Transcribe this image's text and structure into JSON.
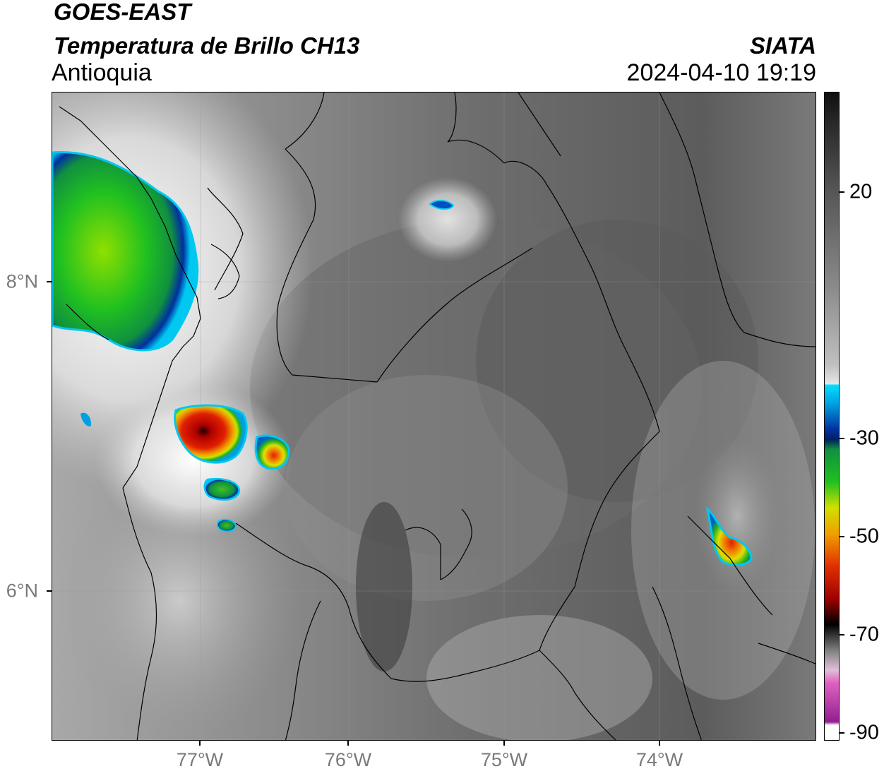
{
  "header": {
    "satellite": "GOES-EAST",
    "product": "Temperatura de Brillo CH13",
    "region": "Antioquia",
    "agency": "SIATA",
    "timestamp": "2024-04-10 19:19"
  },
  "map": {
    "lon_range": [
      -77.95,
      -73.05
    ],
    "lat_range": [
      5.0,
      9.2
    ],
    "lon_ticks": [
      {
        "value": -77,
        "label": "77°W"
      },
      {
        "value": -76,
        "label": "76°W"
      },
      {
        "value": -75,
        "label": "75°W"
      },
      {
        "value": -74,
        "label": "74°W"
      }
    ],
    "lat_ticks": [
      {
        "value": 8,
        "label": "8°N"
      },
      {
        "value": 6,
        "label": "6°N"
      }
    ]
  },
  "colorbar": {
    "range": [
      -90,
      40
    ],
    "ticks": [
      {
        "value": 20,
        "label": "20"
      },
      {
        "value": -30,
        "label": "-30"
      },
      {
        "value": -50,
        "label": "-50"
      },
      {
        "value": -70,
        "label": "-70"
      },
      {
        "value": -90,
        "label": "-90"
      }
    ],
    "colors": {
      "warm": "#3a3a3a",
      "mid": "#b5b5b5",
      "white": "#ffffff",
      "cyan": "#00c8f0",
      "blue": "#0030a0",
      "green": "#10b020",
      "yellow": "#e8e800",
      "orange": "#f08000",
      "red": "#d00000",
      "black": "#000000",
      "pink": "#e060c0",
      "purple": "#902090"
    }
  }
}
